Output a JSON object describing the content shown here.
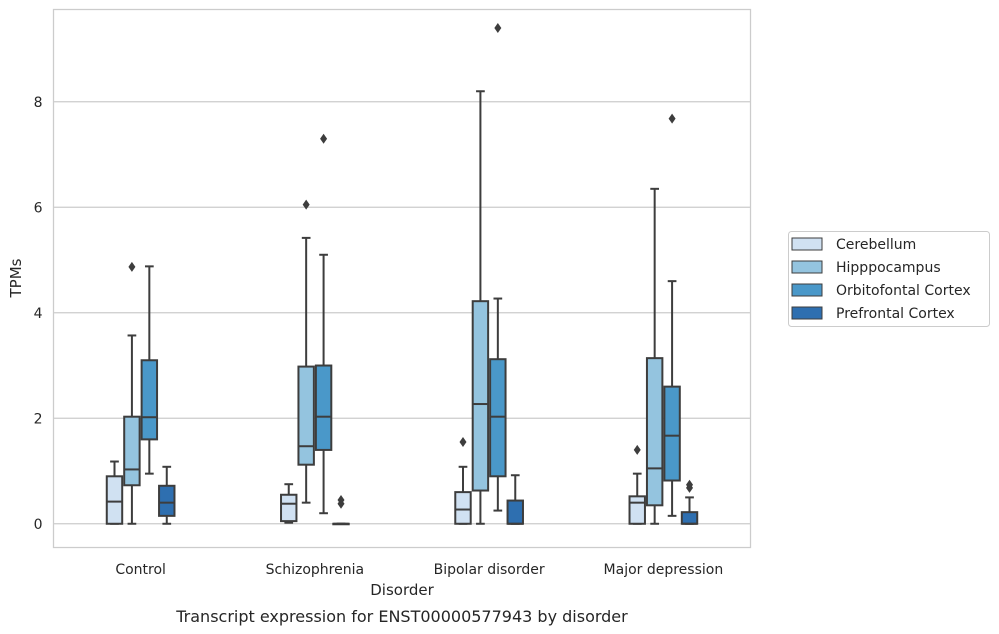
{
  "caption": "Transcript expression for ENST00000577943 by disorder",
  "chart_data": {
    "type": "boxplot",
    "title": "",
    "xlabel": "Disorder",
    "ylabel": "TPMs",
    "ylim": [
      -0.45,
      9.75
    ],
    "yticks": [
      0,
      2,
      4,
      6,
      8
    ],
    "grid": "horizontal",
    "legend_position": "right",
    "categories": [
      "Control",
      "Schizophrenia",
      "Bipolar disorder",
      "Major depression"
    ],
    "series": [
      {
        "name": "Cerebellum",
        "color": "#d0e1f2",
        "boxes": [
          {
            "whisker_low": 0.0,
            "q1": 0.0,
            "median": 0.42,
            "q3": 0.9,
            "whisker_high": 1.18,
            "outliers": []
          },
          {
            "whisker_low": 0.02,
            "q1": 0.05,
            "median": 0.38,
            "q3": 0.55,
            "whisker_high": 0.75,
            "outliers": []
          },
          {
            "whisker_low": 0.0,
            "q1": 0.0,
            "median": 0.27,
            "q3": 0.6,
            "whisker_high": 1.08,
            "outliers": [
              1.55
            ]
          },
          {
            "whisker_low": 0.0,
            "q1": 0.0,
            "median": 0.4,
            "q3": 0.52,
            "whisker_high": 0.95,
            "outliers": [
              1.4
            ]
          }
        ]
      },
      {
        "name": "Hipppocampus",
        "color": "#94c4df",
        "boxes": [
          {
            "whisker_low": 0.0,
            "q1": 0.73,
            "median": 1.03,
            "q3": 2.03,
            "whisker_high": 3.57,
            "outliers": [
              4.87
            ]
          },
          {
            "whisker_low": 0.4,
            "q1": 1.12,
            "median": 1.47,
            "q3": 2.98,
            "whisker_high": 5.42,
            "outliers": [
              6.05
            ]
          },
          {
            "whisker_low": 0.0,
            "q1": 0.63,
            "median": 2.27,
            "q3": 4.22,
            "whisker_high": 8.2,
            "outliers": []
          },
          {
            "whisker_low": 0.0,
            "q1": 0.35,
            "median": 1.05,
            "q3": 3.14,
            "whisker_high": 6.35,
            "outliers": []
          }
        ]
      },
      {
        "name": "Orbitofontal Cortex",
        "color": "#4a98c9",
        "boxes": [
          {
            "whisker_low": 0.95,
            "q1": 1.6,
            "median": 2.02,
            "q3": 3.1,
            "whisker_high": 4.88,
            "outliers": []
          },
          {
            "whisker_low": 0.2,
            "q1": 1.4,
            "median": 2.03,
            "q3": 3.0,
            "whisker_high": 5.1,
            "outliers": [
              7.3
            ]
          },
          {
            "whisker_low": 0.25,
            "q1": 0.9,
            "median": 2.03,
            "q3": 3.12,
            "whisker_high": 4.27,
            "outliers": [
              9.4
            ]
          },
          {
            "whisker_low": 0.15,
            "q1": 0.82,
            "median": 1.67,
            "q3": 2.6,
            "whisker_high": 4.6,
            "outliers": [
              7.68
            ]
          }
        ]
      },
      {
        "name": "Prefrontal Cortex",
        "color": "#2e6fb0",
        "boxes": [
          {
            "whisker_low": 0.0,
            "q1": 0.15,
            "median": 0.4,
            "q3": 0.72,
            "whisker_high": 1.08,
            "outliers": []
          },
          {
            "whisker_low": 0.0,
            "q1": 0.0,
            "median": 0.0,
            "q3": 0.0,
            "whisker_high": 0.0,
            "outliers": [
              0.38,
              0.45
            ]
          },
          {
            "whisker_low": 0.0,
            "q1": 0.0,
            "median": 0.0,
            "q3": 0.44,
            "whisker_high": 0.92,
            "outliers": []
          },
          {
            "whisker_low": 0.0,
            "q1": 0.0,
            "median": 0.0,
            "q3": 0.22,
            "whisker_high": 0.5,
            "outliers": [
              0.68,
              0.74
            ]
          }
        ]
      }
    ]
  }
}
